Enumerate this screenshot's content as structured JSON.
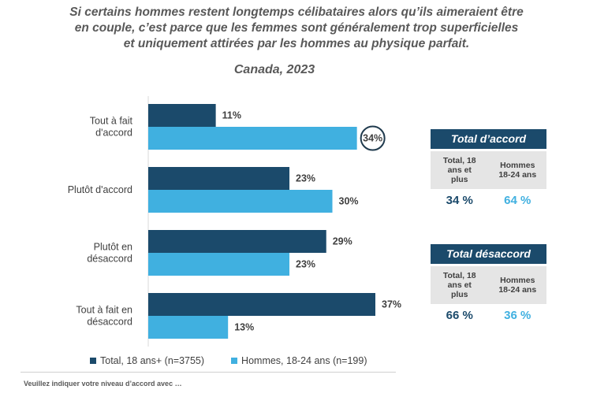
{
  "title_lines": [
    "Si certains hommes restent longtemps célibataires alors qu’ils aimeraient être",
    "en couple, c’est parce que les femmes sont généralement trop superficielles",
    "et uniquement attirées par les hommes au physique parfait."
  ],
  "subtitle": "Canada, 2023",
  "chart_data": {
    "type": "bar",
    "orientation": "horizontal",
    "categories": [
      [
        "Tout à fait",
        "d'accord"
      ],
      [
        "Plutôt d'accord"
      ],
      [
        "Plutôt en",
        "désaccord"
      ],
      [
        "Tout à fait en",
        "désaccord"
      ]
    ],
    "series": [
      {
        "name": "Total, 18 ans+ (n=3755)",
        "color": "#1b4a6b",
        "values": [
          11,
          23,
          29,
          37
        ]
      },
      {
        "name": "Hommes, 18-24 ans (n=199)",
        "color": "#40b0e0",
        "values": [
          34,
          30,
          23,
          13
        ]
      }
    ],
    "value_suffix": "%",
    "xlim": [
      0,
      40
    ],
    "highlight": {
      "series": 1,
      "index": 0
    }
  },
  "legend": {
    "total": "Total, 18 ans+ (n=3755)",
    "hommes": "Hommes, 18-24 ans (n=199)"
  },
  "panels": [
    {
      "title": "Total d’accord",
      "col1": [
        "Total, 18",
        "ans et",
        "plus"
      ],
      "col2": [
        "Hommes",
        "18-24 ans"
      ],
      "val1": "34 %",
      "val2": "64 %"
    },
    {
      "title": "Total désaccord",
      "col1": [
        "Total, 18",
        "ans et",
        "plus"
      ],
      "col2": [
        "Hommes",
        "18-24 ans"
      ],
      "val1": "66 %",
      "val2": "36 %"
    }
  ],
  "colors": {
    "dark": "#1b4a6b",
    "light": "#40b0e0",
    "text": "#404040"
  },
  "footer": "Veuillez indiquer votre niveau d’accord avec …"
}
